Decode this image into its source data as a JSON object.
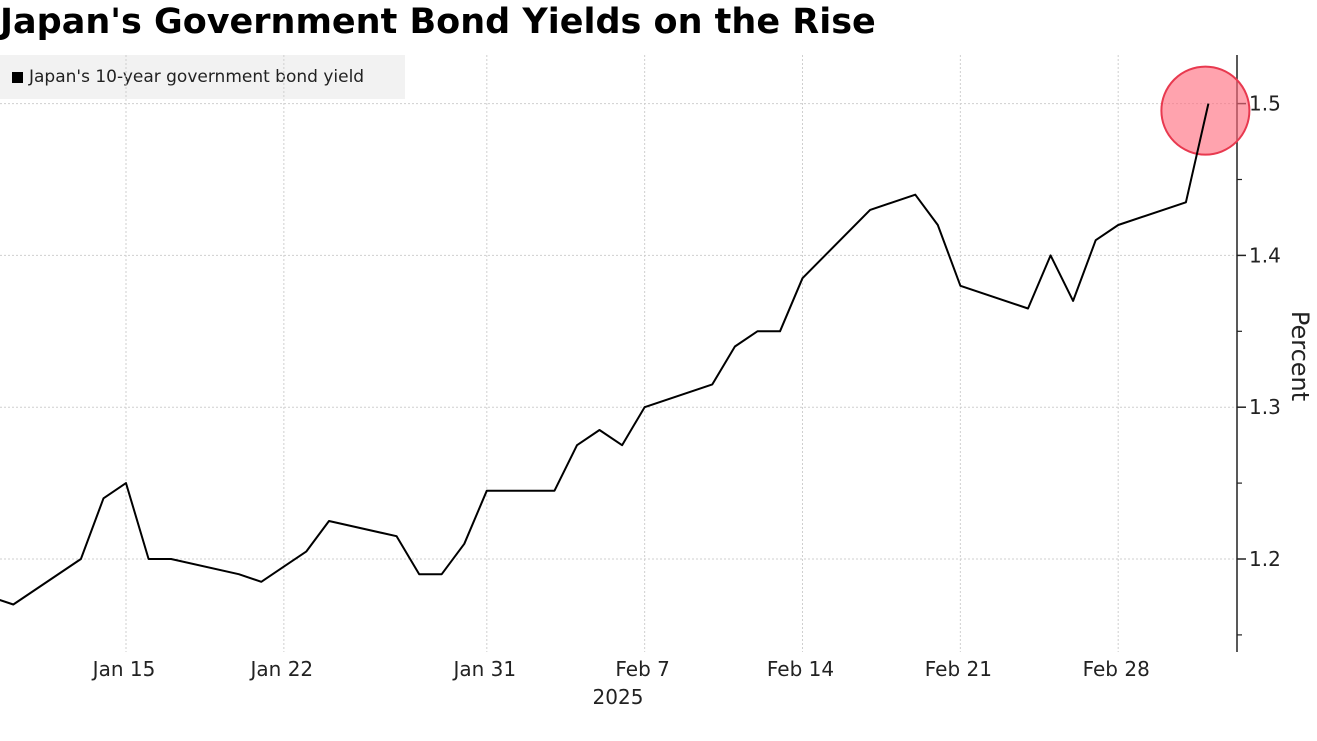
{
  "chart_data": {
    "type": "line",
    "title": "Japan's Government Bond Yields on the Rise",
    "xlabel": "2025",
    "ylabel": "Percent",
    "ylim": [
      1.15,
      1.53
    ],
    "y_ticks": [
      1.2,
      1.3,
      1.4,
      1.5
    ],
    "x_ticks": [
      {
        "label": "Jan 15",
        "date": "2025-01-15"
      },
      {
        "label": "Jan 22",
        "date": "2025-01-22"
      },
      {
        "label": "Jan 31",
        "date": "2025-01-31"
      },
      {
        "label": "Feb 7",
        "date": "2025-02-07"
      },
      {
        "label": "Feb 14",
        "date": "2025-02-14"
      },
      {
        "label": "Feb 21",
        "date": "2025-02-21"
      },
      {
        "label": "Feb 28",
        "date": "2025-02-28"
      }
    ],
    "grid": true,
    "legend_position": "top-left",
    "series": [
      {
        "name": "Japan's 10-year government bond yield",
        "color": "#000000",
        "points": [
          {
            "x": "2025-01-09",
            "y": 1.175
          },
          {
            "x": "2025-01-10",
            "y": 1.17
          },
          {
            "x": "2025-01-13",
            "y": 1.2
          },
          {
            "x": "2025-01-14",
            "y": 1.24
          },
          {
            "x": "2025-01-15",
            "y": 1.25
          },
          {
            "x": "2025-01-16",
            "y": 1.2
          },
          {
            "x": "2025-01-17",
            "y": 1.2
          },
          {
            "x": "2025-01-20",
            "y": 1.19
          },
          {
            "x": "2025-01-21",
            "y": 1.185
          },
          {
            "x": "2025-01-22",
            "y": 1.195
          },
          {
            "x": "2025-01-23",
            "y": 1.205
          },
          {
            "x": "2025-01-24",
            "y": 1.225
          },
          {
            "x": "2025-01-27",
            "y": 1.215
          },
          {
            "x": "2025-01-28",
            "y": 1.19
          },
          {
            "x": "2025-01-29",
            "y": 1.19
          },
          {
            "x": "2025-01-30",
            "y": 1.21
          },
          {
            "x": "2025-01-31",
            "y": 1.245
          },
          {
            "x": "2025-02-03",
            "y": 1.245
          },
          {
            "x": "2025-02-04",
            "y": 1.275
          },
          {
            "x": "2025-02-05",
            "y": 1.285
          },
          {
            "x": "2025-02-06",
            "y": 1.275
          },
          {
            "x": "2025-02-07",
            "y": 1.3
          },
          {
            "x": "2025-02-10",
            "y": 1.315
          },
          {
            "x": "2025-02-11",
            "y": 1.34
          },
          {
            "x": "2025-02-12",
            "y": 1.35
          },
          {
            "x": "2025-02-13",
            "y": 1.35
          },
          {
            "x": "2025-02-14",
            "y": 1.385
          },
          {
            "x": "2025-02-17",
            "y": 1.43
          },
          {
            "x": "2025-02-18",
            "y": 1.435
          },
          {
            "x": "2025-02-19",
            "y": 1.44
          },
          {
            "x": "2025-02-20",
            "y": 1.42
          },
          {
            "x": "2025-02-21",
            "y": 1.38
          },
          {
            "x": "2025-02-24",
            "y": 1.365
          },
          {
            "x": "2025-02-25",
            "y": 1.4
          },
          {
            "x": "2025-02-26",
            "y": 1.37
          },
          {
            "x": "2025-02-27",
            "y": 1.41
          },
          {
            "x": "2025-02-28",
            "y": 1.42
          },
          {
            "x": "2025-03-03",
            "y": 1.435
          },
          {
            "x": "2025-03-04",
            "y": 1.5
          }
        ]
      }
    ],
    "highlight": {
      "x": "2025-03-04",
      "y": 1.5,
      "color": "#ff6b7d"
    }
  }
}
